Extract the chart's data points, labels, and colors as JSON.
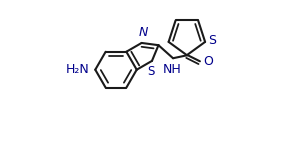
{
  "bg": "#ffffff",
  "bc": "#1a1a1a",
  "hc": "#00008b",
  "lw": 1.5,
  "fs": 9.0,
  "xlim": [
    0.02,
    1.0
  ],
  "ylim": [
    0.05,
    0.97
  ]
}
